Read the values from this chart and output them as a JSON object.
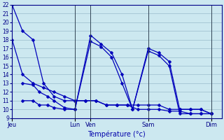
{
  "background_color": "#cce8f0",
  "grid_color": "#99bbcc",
  "line_color": "#0000bb",
  "xlabel": "Température (°c)",
  "ylim_min": 9,
  "ylim_max": 22,
  "day_labels": [
    "Jeu",
    "Lun",
    "Ven",
    "Sam",
    "Dim"
  ],
  "day_x": [
    0,
    3.0,
    3.75,
    6.5,
    9.5
  ],
  "xlim_min": 0,
  "xlim_max": 10.0,
  "series": [
    {
      "x": [
        0,
        0.5,
        1.0,
        1.5,
        2.0,
        2.5,
        3.0,
        3.5,
        4.0,
        4.5,
        5.0,
        5.5,
        6.0,
        6.5,
        7.0,
        7.5,
        8.0,
        8.5,
        9.0,
        9.5
      ],
      "y": [
        22,
        19,
        18,
        13,
        11.5,
        11,
        11,
        11,
        11,
        10.5,
        10.5,
        10.5,
        10.5,
        10.5,
        10.5,
        10.0,
        10.0,
        10.0,
        10.0,
        9.5
      ]
    },
    {
      "x": [
        0,
        0.5,
        1.0,
        1.5,
        2.0,
        2.5,
        3.0,
        3.5,
        4.0,
        4.5,
        5.0,
        5.5,
        6.0,
        6.5,
        7.0,
        7.5,
        8.0,
        8.5,
        9.0,
        9.5
      ],
      "y": [
        18,
        14,
        13,
        12.5,
        12,
        11.5,
        11,
        11,
        11,
        10.5,
        10.5,
        10.5,
        10.0,
        10.0,
        10.0,
        9.8,
        9.8,
        9.5,
        9.5,
        9.5
      ]
    },
    {
      "x": [
        0.5,
        1.0,
        1.3,
        1.7,
        2.0,
        2.5,
        3.0,
        3.75,
        4.25,
        4.75,
        5.25,
        5.75,
        6.5,
        7.0,
        7.5,
        8.0,
        8.5,
        9.0,
        9.5
      ],
      "y": [
        13,
        12.8,
        12,
        11.5,
        11,
        10.2,
        10,
        18.5,
        17.5,
        16.5,
        14,
        10.0,
        17.0,
        16.5,
        15.5,
        10,
        10,
        10,
        9.5
      ]
    },
    {
      "x": [
        0.5,
        1.0,
        1.3,
        1.7,
        2.0,
        2.5,
        3.0,
        3.75,
        4.25,
        4.75,
        5.25,
        5.75,
        6.5,
        7.0,
        7.5,
        8.0,
        8.5,
        9.0,
        9.5
      ],
      "y": [
        11,
        11,
        10.5,
        10.5,
        10.2,
        10,
        10,
        17.8,
        17.2,
        16.0,
        13.0,
        10.0,
        16.7,
        16.2,
        15.0,
        9.5,
        9.5,
        9.5,
        9.5
      ]
    }
  ],
  "marker": "D",
  "markersize": 2.5,
  "linewidth": 0.9
}
